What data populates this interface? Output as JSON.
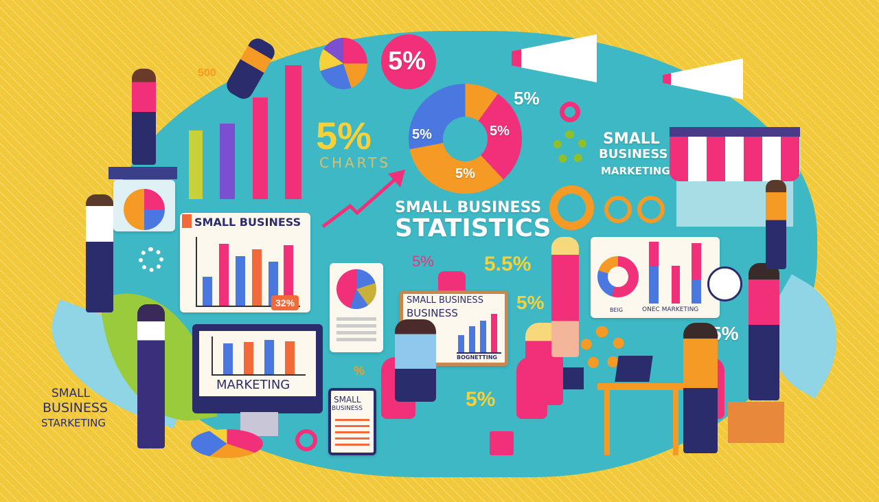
{
  "main_title": {
    "line1": "SMALL BUSINESS",
    "line2": "STATISTICS"
  },
  "top_right_heading": {
    "line1": "SMALL",
    "line2": "BUSINESS",
    "line3": "MARKETING"
  },
  "left_heading": {
    "line1": "SMALL",
    "line2": "BUSINESS",
    "line3": "STARKETING"
  },
  "donut_labels": [
    "5%",
    "5%",
    "5%"
  ],
  "percent_badges": {
    "top_circle": "5%",
    "top_small": "500",
    "near_megaphone": "5%",
    "big_yellow": "5%",
    "charts_caption": "CHARTS",
    "mid_row_pink": "5%",
    "mid_row_yellow": "5.5%",
    "mid_yellow": "5%",
    "right_white": "5%",
    "bottom_yellow": "5%",
    "chart_callout": "32%",
    "small_icon": "%"
  },
  "chart_card": {
    "title": "SMALL BUSINESS"
  },
  "monitor": {
    "caption": "MARKETING"
  },
  "easel": {
    "line1": "SMALL BUSINESS",
    "line2": "BUSINESS",
    "caption": "BOGNETTING"
  },
  "right_card": {
    "caption_left": "BEIG",
    "caption_right": "ONEC MARKETING"
  },
  "tablet": {
    "line1": "SMALL",
    "line2": "BUSINESS"
  },
  "colors": {
    "background": "#f1c93a",
    "blob": "#3db8c4",
    "pink": "#f2307a",
    "blue": "#4a78e0",
    "orange": "#f59a25",
    "purple": "#7a4fd0",
    "navy": "#2b2c6b"
  }
}
